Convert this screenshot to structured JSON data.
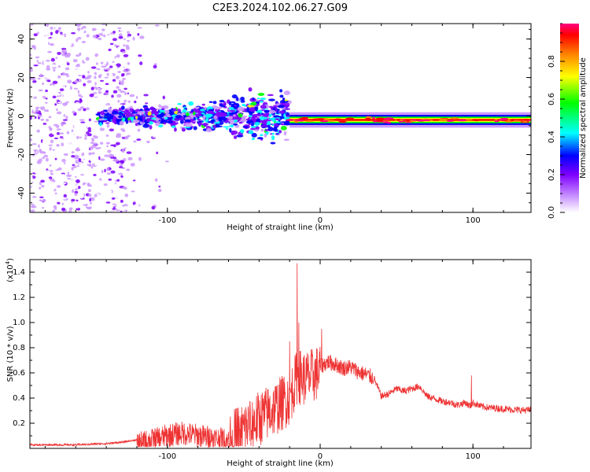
{
  "page_title": "C2E3.2024.102.06.27.G09",
  "chart_data": [
    {
      "type": "heatmap",
      "title": "C2E3.2024.102.06.27.G09",
      "xlabel": "Height of straight line (km)",
      "ylabel": "Frequency (Hz)",
      "xlim": [
        -190,
        138
      ],
      "ylim": [
        -50,
        48
      ],
      "x_ticks": [
        -100,
        0,
        100
      ],
      "x_tick_labels": [
        "-100",
        "0",
        "100"
      ],
      "y_ticks": [
        -40,
        -20,
        0,
        20,
        40
      ],
      "y_tick_labels": [
        "-40",
        "-20",
        "0",
        "20",
        "40"
      ],
      "colorbar": {
        "label": "Normalized spectral amplitude",
        "range": [
          0,
          1
        ],
        "ticks": [
          0.0,
          0.2,
          0.4,
          0.6,
          0.8
        ],
        "tick_labels": [
          "0.0",
          "0.2",
          "0.4",
          "0.6",
          "0.8"
        ],
        "colors": [
          "#ffffff",
          "#cc99ff",
          "#7f00ff",
          "#0000ff",
          "#00ffff",
          "#00ff00",
          "#ffff00",
          "#ff8000",
          "#ff0000",
          "#ff0080"
        ]
      },
      "features": [
        {
          "x_range": [
            -190,
            -125
          ],
          "freq_range": [
            -50,
            48
          ],
          "amplitude": 0.25,
          "description_key": "noise"
        },
        {
          "x_range": [
            -145,
            -20
          ],
          "freq_center": 0,
          "amplitude": 0.35
        },
        {
          "x_range": [
            -20,
            138
          ],
          "freq_center": -2,
          "amplitude": 0.9
        }
      ]
    },
    {
      "type": "line",
      "xlabel": "Height of straight line (km)",
      "ylabel": "SNR (10 * v/v)",
      "y_scale_label": "(x10",
      "y_scale_exponent": "4",
      "y_scale_suffix": ")",
      "xlim": [
        -190,
        138
      ],
      "ylim": [
        0,
        1.5
      ],
      "x_ticks": [
        -100,
        0,
        100
      ],
      "x_tick_labels": [
        "-100",
        "0",
        "100"
      ],
      "y_ticks": [
        0.2,
        0.4,
        0.6,
        0.8,
        1.0,
        1.2,
        1.4
      ],
      "y_tick_labels": [
        "0.2",
        "0.4",
        "0.6",
        "0.8",
        "1.0",
        "1.2",
        "1.4"
      ],
      "series": [
        {
          "color": "#ee3333",
          "x": [
            -190,
            -160,
            -140,
            -130,
            -120,
            -110,
            -100,
            -90,
            -80,
            -70,
            -60,
            -50,
            -40,
            -30,
            -20,
            -15,
            -10,
            -5,
            0,
            5,
            10,
            15,
            20,
            25,
            30,
            35,
            40,
            45,
            50,
            55,
            60,
            65,
            70,
            75,
            80,
            85,
            90,
            95,
            98,
            100,
            105,
            110,
            120,
            130,
            138
          ],
          "y": [
            0.03,
            0.03,
            0.04,
            0.05,
            0.07,
            0.1,
            0.14,
            0.16,
            0.14,
            0.12,
            0.1,
            0.2,
            0.28,
            0.36,
            0.45,
            0.62,
            0.6,
            0.62,
            0.66,
            0.7,
            0.68,
            0.65,
            0.66,
            0.62,
            0.6,
            0.57,
            0.42,
            0.44,
            0.48,
            0.46,
            0.48,
            0.5,
            0.42,
            0.4,
            0.38,
            0.37,
            0.35,
            0.37,
            0.34,
            0.37,
            0.34,
            0.33,
            0.32,
            0.31,
            0.31
          ],
          "peaks": [
            {
              "x": -15,
              "y": 1.47
            },
            {
              "x": -14,
              "y": 1.0
            },
            {
              "x": -20,
              "y": 0.85
            },
            {
              "x": 1,
              "y": 0.95
            },
            {
              "x": 99,
              "y": 0.58
            }
          ]
        }
      ]
    }
  ]
}
